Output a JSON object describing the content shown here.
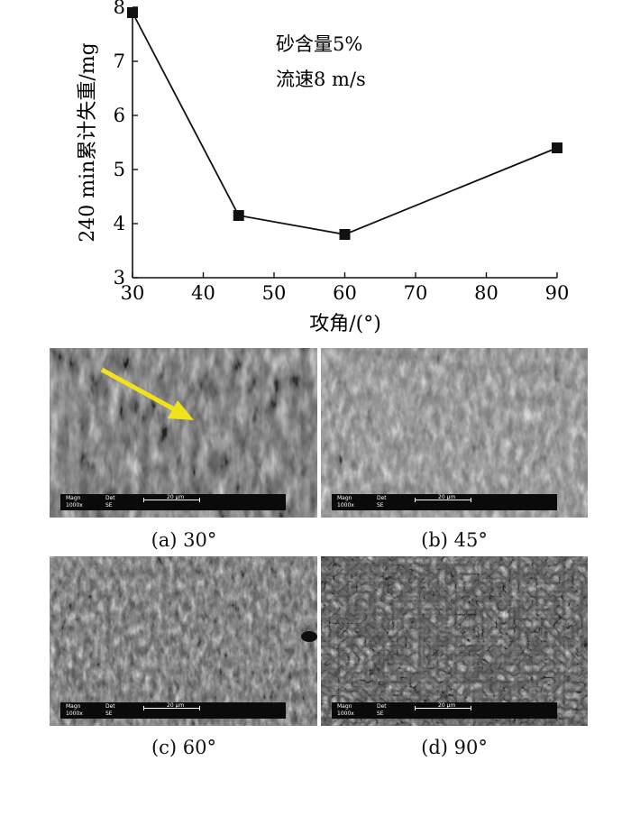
{
  "chart_data": {
    "type": "line",
    "x": [
      30,
      45,
      60,
      90
    ],
    "values": [
      7.9,
      4.15,
      3.8,
      5.4
    ],
    "ylabel": "240 min累计失重/mg",
    "xlabel": "攻角/(°)",
    "xlim": [
      30,
      90
    ],
    "ylim": [
      3,
      8
    ],
    "xticks": [
      "30",
      "40",
      "50",
      "60",
      "70",
      "80",
      "90"
    ],
    "yticks": [
      "3",
      "4",
      "5",
      "6",
      "7",
      "8"
    ],
    "annotations": [
      "砂含量5%",
      "流速8 m/s"
    ],
    "grid": false
  },
  "panels": [
    {
      "caption": "(a) 30°",
      "mag_label": "Magn",
      "det_label": "Det",
      "mag_value": "1000x",
      "det_value": "SE",
      "scale": "20 μm"
    },
    {
      "caption": "(b) 45°",
      "mag_label": "Magn",
      "det_label": "Det",
      "mag_value": "1000x",
      "det_value": "SE",
      "scale": "20 μm"
    },
    {
      "caption": "(c) 60°",
      "mag_label": "Magn",
      "det_label": "Det",
      "mag_value": "1000x",
      "det_value": "SE",
      "scale": "20 μm"
    },
    {
      "caption": "(d) 90°",
      "mag_label": "Magn",
      "det_label": "Det",
      "mag_value": "1000x",
      "det_value": "SE",
      "scale": "20 μm"
    }
  ],
  "colors": {
    "arrow": "#f2e21b",
    "line": "#111111"
  }
}
